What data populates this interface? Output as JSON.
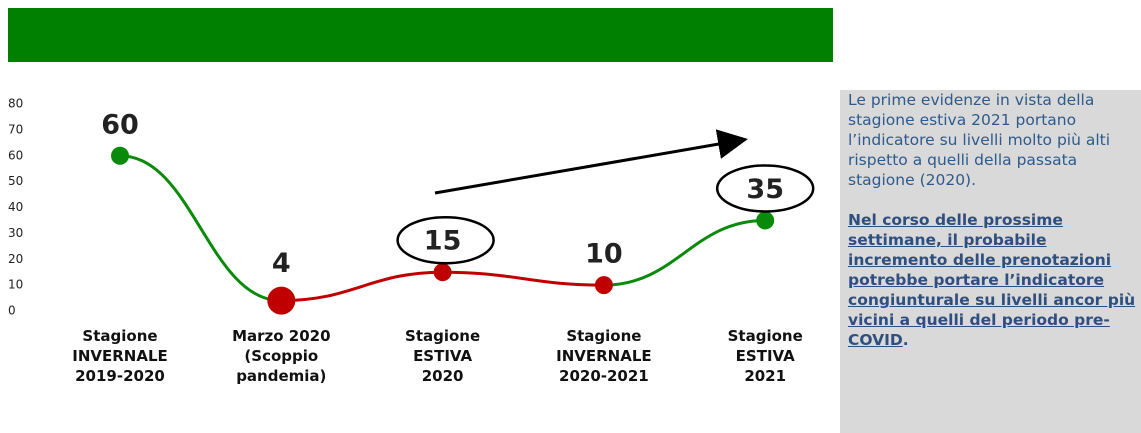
{
  "chart_data": {
    "type": "line",
    "categories": [
      "Stagione\nINVERNALE\n2019-2020",
      "Marzo 2020\n(Scoppio\npandemia)",
      "Stagione\nESTIVA\n2020",
      "Stagione\nINVERNALE\n2020-2021",
      "Stagione\nESTIVA\n2021"
    ],
    "series": [
      {
        "values": [
          60,
          4,
          15,
          10,
          35
        ],
        "point_colors": [
          "#0a8a0a",
          "#c00000",
          "#c00000",
          "#c00000",
          "#0a8a0a"
        ],
        "segment_colors": [
          "#0a8a0a",
          "#c00000",
          "#c00000",
          "#0a8a0a"
        ],
        "large_points": [
          1
        ],
        "circled_labels": [
          2,
          4
        ]
      }
    ],
    "ylim": [
      0,
      80
    ],
    "yticks": [
      0,
      10,
      20,
      30,
      40,
      50,
      60,
      70,
      80
    ],
    "banner_color": "#008000"
  },
  "panel": {
    "paragraphs": [
      {
        "text": "Le prime evidenze in vista della stagione estiva 2021 portano l’indicatore su livelli molto più alti rispetto a quelli della passata stagione (2020)."
      },
      {
        "text": "Nel corso delle prossime settimane, il probabile incremento delle prenotazioni potrebbe portare l’indicatore congiunturale su livelli ancor più vicini a quelli del periodo pre-COVID",
        "suffix": "."
      }
    ]
  }
}
